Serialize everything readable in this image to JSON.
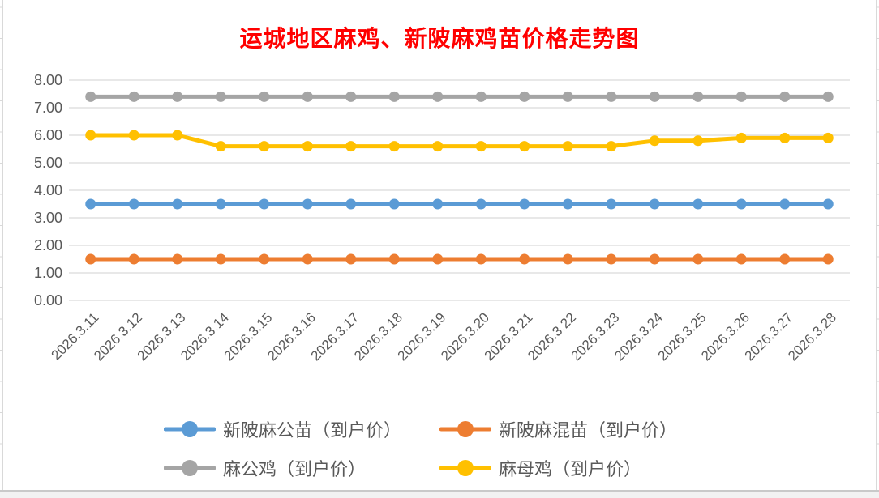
{
  "title": "运城地区麻鸡、新陂麻鸡苗价格走势图",
  "colors": {
    "title": "#FF0000",
    "axis_text": "#595959",
    "gridline": "#D9D9D9",
    "edge_line": "#D9D9D9",
    "bottom_border": "#C9C9C9",
    "background": "#FFFFFF"
  },
  "chart_data": {
    "type": "line",
    "title": "运城地区麻鸡、新陂麻鸡苗价格走势图",
    "xlabel": "",
    "ylabel": "",
    "grid": true,
    "legend_position": "bottom",
    "marker": "circle",
    "categories": [
      "2026.3.11",
      "2026.3.12",
      "2026.3.13",
      "2026.3.14",
      "2026.3.15",
      "2026.3.16",
      "2026.3.17",
      "2026.3.18",
      "2026.3.19",
      "2026.3.20",
      "2026.3.21",
      "2026.3.22",
      "2026.3.23",
      "2026.3.24",
      "2026.3.25",
      "2026.3.26",
      "2026.3.27",
      "2026.3.28"
    ],
    "y_axis": {
      "min": 0,
      "max": 8,
      "tick_step": 1,
      "tick_labels": [
        "0.00",
        "1.00",
        "2.00",
        "3.00",
        "4.00",
        "5.00",
        "6.00",
        "7.00",
        "8.00"
      ]
    },
    "series": [
      {
        "name": "新陂麻公苗（到户价）",
        "color": "#5B9BD5",
        "values": [
          3.5,
          3.5,
          3.5,
          3.5,
          3.5,
          3.5,
          3.5,
          3.5,
          3.5,
          3.5,
          3.5,
          3.5,
          3.5,
          3.5,
          3.5,
          3.5,
          3.5,
          3.5
        ]
      },
      {
        "name": "新陂麻混苗（到户价）",
        "color": "#ED7D31",
        "values": [
          1.5,
          1.5,
          1.5,
          1.5,
          1.5,
          1.5,
          1.5,
          1.5,
          1.5,
          1.5,
          1.5,
          1.5,
          1.5,
          1.5,
          1.5,
          1.5,
          1.5,
          1.5
        ]
      },
      {
        "name": "麻公鸡（到户价）",
        "color": "#A5A5A5",
        "values": [
          7.4,
          7.4,
          7.4,
          7.4,
          7.4,
          7.4,
          7.4,
          7.4,
          7.4,
          7.4,
          7.4,
          7.4,
          7.4,
          7.4,
          7.4,
          7.4,
          7.4,
          7.4
        ]
      },
      {
        "name": "麻母鸡（到户价）",
        "color": "#FFC000",
        "values": [
          6.0,
          6.0,
          6.0,
          5.6,
          5.6,
          5.6,
          5.6,
          5.6,
          5.6,
          5.6,
          5.6,
          5.6,
          5.6,
          5.8,
          5.8,
          5.9,
          5.9,
          5.9
        ]
      }
    ]
  }
}
